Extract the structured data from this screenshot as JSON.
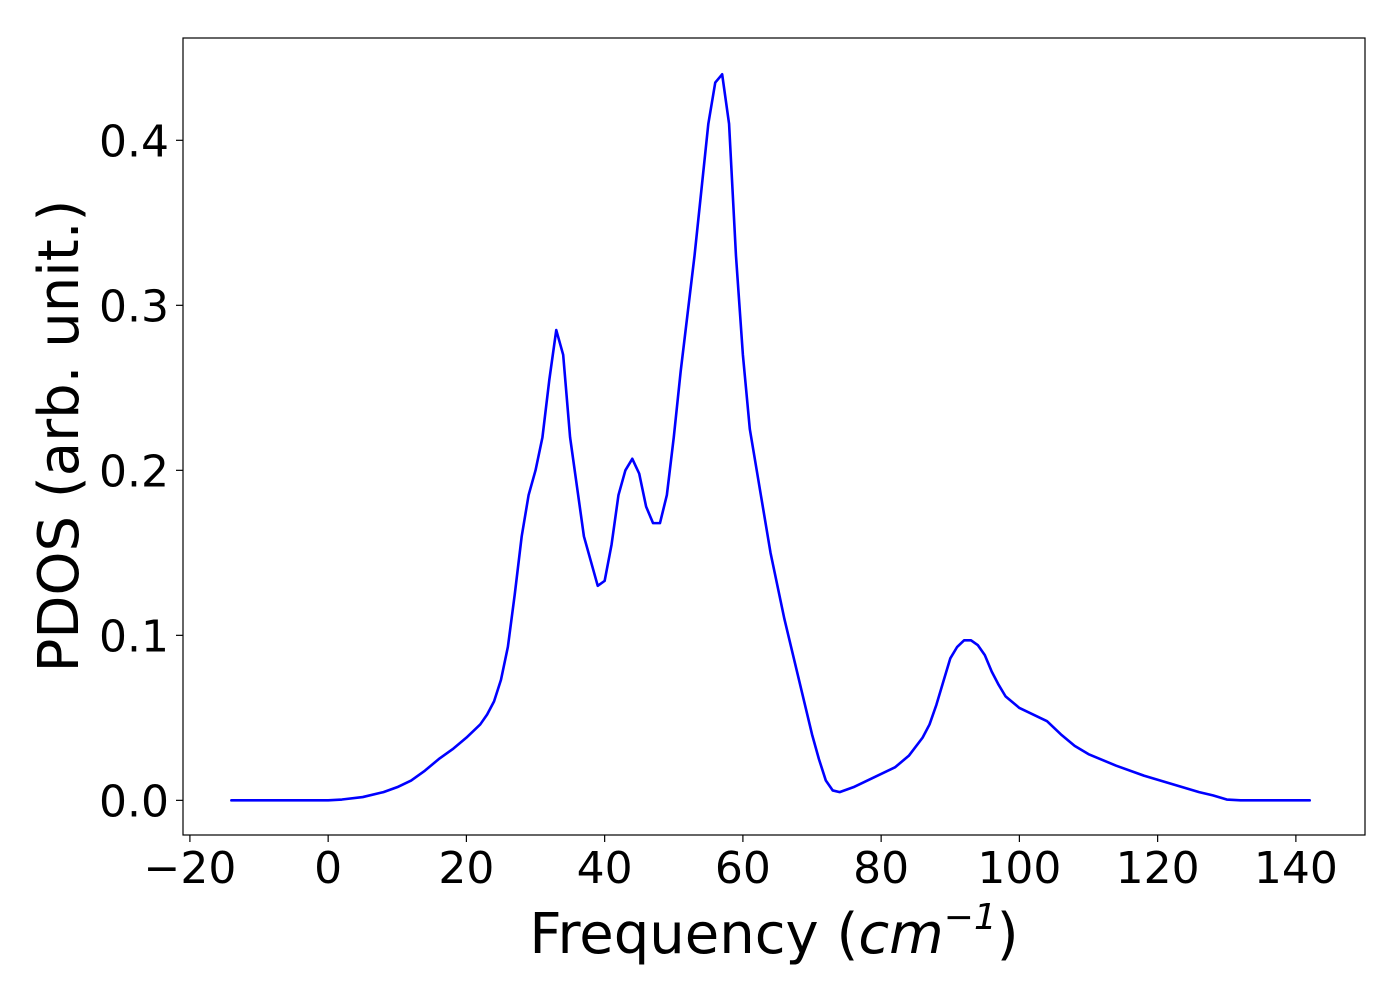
{
  "chart_data": {
    "type": "line",
    "title": "",
    "xlabel_prefix": "Frequency (",
    "xlabel_math": "cm",
    "xlabel_exponent": "−1",
    "xlabel_suffix": ")",
    "ylabel": "PDOS (arb. unit.)",
    "xlim": [
      -21,
      150
    ],
    "ylim": [
      -0.021,
      0.462
    ],
    "xticks": [
      -20,
      0,
      20,
      40,
      60,
      80,
      100,
      120,
      140
    ],
    "xtick_labels": [
      "−20",
      "0",
      "20",
      "40",
      "60",
      "80",
      "100",
      "120",
      "140"
    ],
    "yticks": [
      0.0,
      0.1,
      0.2,
      0.3,
      0.4
    ],
    "ytick_labels": [
      "0.0",
      "0.1",
      "0.2",
      "0.3",
      "0.4"
    ],
    "grid": false,
    "legend": "none",
    "line_color": "#0000ff",
    "series": [
      {
        "x": [
          -14,
          -10,
          -5,
          0,
          2,
          5,
          8,
          10,
          12,
          14,
          16,
          18,
          20,
          22,
          23,
          24,
          25,
          26,
          27,
          28,
          29,
          30,
          31,
          32,
          33,
          34,
          35,
          36,
          37,
          38,
          39,
          40,
          41,
          42,
          43,
          44,
          45,
          46,
          47,
          48,
          49,
          50,
          51,
          52,
          53,
          54,
          55,
          56,
          57,
          58,
          59,
          60,
          61,
          62,
          64,
          66,
          68,
          70,
          71,
          72,
          73,
          74,
          76,
          78,
          80,
          82,
          84,
          86,
          87,
          88,
          89,
          90,
          91,
          92,
          93,
          94,
          95,
          96,
          97,
          98,
          100,
          102,
          104,
          106,
          108,
          110,
          114,
          118,
          122,
          126,
          128,
          130,
          132,
          142
        ],
        "y": [
          0.0,
          0.0,
          0.0,
          0.0,
          0.0005,
          0.002,
          0.005,
          0.008,
          0.012,
          0.018,
          0.025,
          0.031,
          0.038,
          0.046,
          0.052,
          0.06,
          0.073,
          0.093,
          0.125,
          0.16,
          0.185,
          0.2,
          0.22,
          0.255,
          0.285,
          0.27,
          0.22,
          0.19,
          0.16,
          0.145,
          0.13,
          0.133,
          0.155,
          0.185,
          0.2,
          0.207,
          0.198,
          0.178,
          0.168,
          0.168,
          0.185,
          0.22,
          0.26,
          0.295,
          0.33,
          0.37,
          0.41,
          0.435,
          0.44,
          0.41,
          0.33,
          0.27,
          0.225,
          0.2,
          0.15,
          0.11,
          0.075,
          0.04,
          0.025,
          0.012,
          0.006,
          0.005,
          0.008,
          0.012,
          0.016,
          0.02,
          0.027,
          0.038,
          0.046,
          0.058,
          0.072,
          0.086,
          0.093,
          0.097,
          0.097,
          0.094,
          0.088,
          0.078,
          0.07,
          0.063,
          0.056,
          0.052,
          0.048,
          0.04,
          0.033,
          0.028,
          0.021,
          0.015,
          0.01,
          0.005,
          0.003,
          0.0005,
          0.0,
          0.0
        ]
      }
    ]
  }
}
